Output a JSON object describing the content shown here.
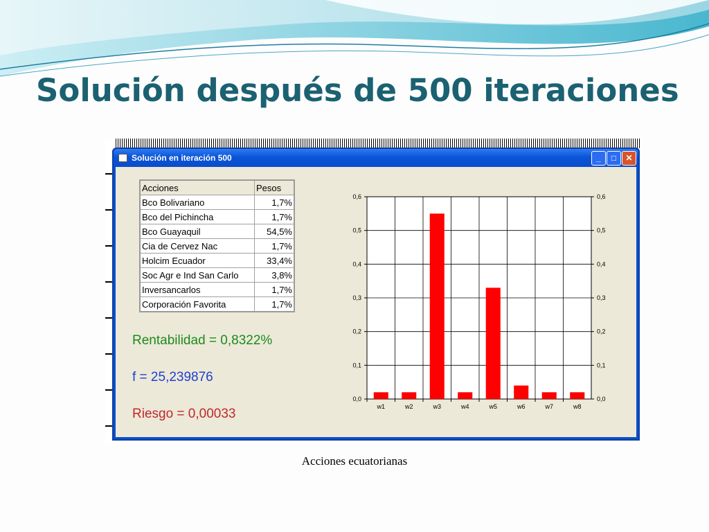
{
  "slide": {
    "title": "Solución después de 500 iteraciones",
    "caption": "Acciones ecuatorianas"
  },
  "window": {
    "title": "Solución en iteración 500",
    "min_label": "_",
    "max_label": "□",
    "close_label": "✕"
  },
  "table": {
    "headers": [
      "Acciones",
      "Pesos"
    ],
    "rows": [
      [
        "Bco Bolivariano",
        "1,7%"
      ],
      [
        "Bco del Pichincha",
        "1,7%"
      ],
      [
        "Bco Guayaquil",
        "54,5%"
      ],
      [
        "Cia de Cervez Nac",
        "1,7%"
      ],
      [
        "Holcim Ecuador",
        "33,4%"
      ],
      [
        "Soc Agr e Ind San Carlo",
        "3,8%"
      ],
      [
        "Inversancarlos",
        "1,7%"
      ],
      [
        "Corporación Favorita",
        "1,7%"
      ]
    ]
  },
  "metrics": {
    "rentabilidad": "Rentabilidad = 0,8322%",
    "f": "f = 25,239876",
    "riesgo": "Riesgo = 0,00033"
  },
  "colors": {
    "bar": "#ff0000",
    "title": "#1b6172",
    "window_blue": "#0a55d8",
    "client_bg": "#ece9d8"
  },
  "chart_data": {
    "type": "bar",
    "categories": [
      "w1",
      "w2",
      "w3",
      "w4",
      "w5",
      "w6",
      "w7",
      "w8"
    ],
    "values": [
      0.02,
      0.02,
      0.55,
      0.02,
      0.33,
      0.04,
      0.02,
      0.02
    ],
    "ylim": [
      0,
      0.6
    ],
    "yticks": [
      "0,0",
      "0,1",
      "0,2",
      "0,3",
      "0,4",
      "0,5",
      "0,6"
    ],
    "grid": true,
    "title": "",
    "xlabel": "",
    "ylabel": ""
  }
}
